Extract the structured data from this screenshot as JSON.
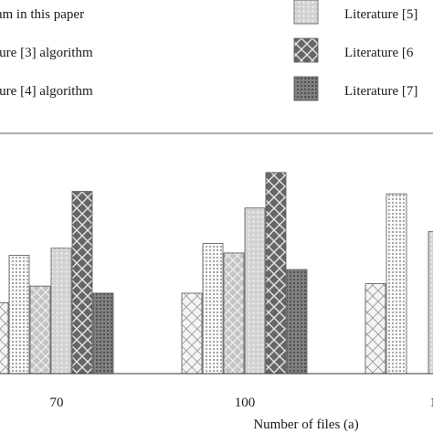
{
  "chart_data": {
    "type": "bar",
    "xlabel": "Number of files (a)",
    "categories": [
      "70",
      "100",
      "1"
    ],
    "legend": {
      "placement": "top",
      "entries": [
        {
          "label": "hm in this paper",
          "pattern": "crosshatch-light"
        },
        {
          "label": "ture [3] algorithm",
          "pattern": "dots-fine"
        },
        {
          "label": "ture [4] algorithm",
          "pattern": "diamond-light"
        },
        {
          "label": "Literature [5]",
          "pattern": "dots-light"
        },
        {
          "label": "Literature [6",
          "pattern": "crosshatch-dark"
        },
        {
          "label": "Literature [7]",
          "pattern": "dots-dark"
        }
      ]
    },
    "series": [
      {
        "pattern": "crosshatch-light",
        "values": [
          30,
          34,
          38
        ]
      },
      {
        "pattern": "dots-fine",
        "values": [
          50,
          55,
          76
        ]
      },
      {
        "pattern": "diamond-light",
        "values": [
          37,
          51,
          null
        ]
      },
      {
        "pattern": "dots-light",
        "values": [
          53,
          70,
          60
        ]
      },
      {
        "pattern": "crosshatch-dark",
        "values": [
          77,
          85,
          null
        ]
      },
      {
        "pattern": "dots-dark",
        "values": [
          34,
          44,
          null
        ]
      }
    ],
    "ylim": [
      0,
      100
    ]
  },
  "colors": {
    "crosshatch-light": "#f2f2f2",
    "dots-fine": "#e4e4e4",
    "diamond-light": "#c8c8c8",
    "dots-light": "#d4d4d4",
    "crosshatch-dark": "#6e6e6e",
    "dots-dark": "#7c7c7c"
  }
}
